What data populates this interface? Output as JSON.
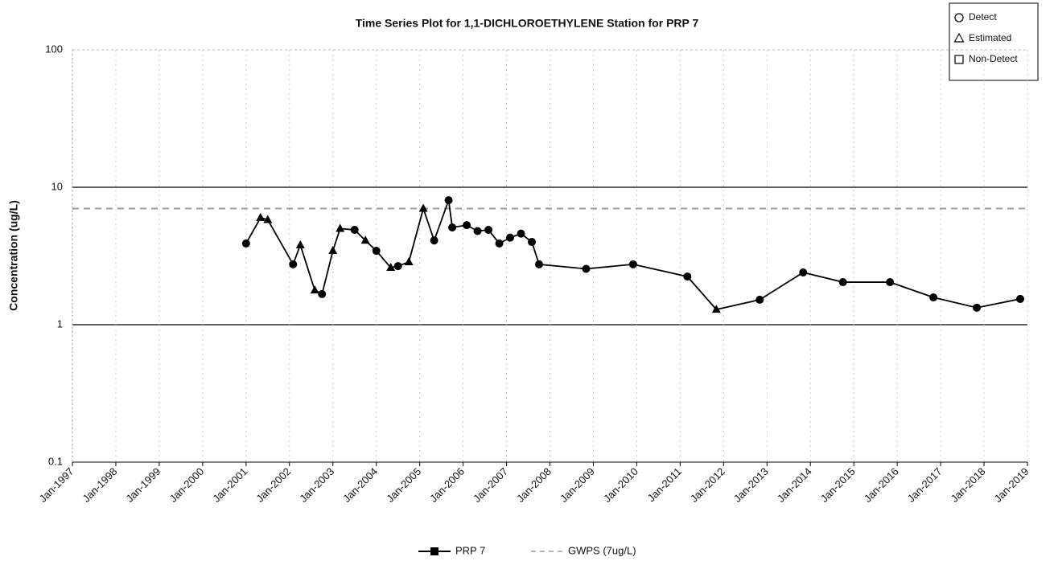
{
  "chart_data": {
    "type": "line",
    "title": "Time Series Plot for 1,1-DICHLOROETHYLENE Station for PRP 7",
    "y_label": "Concentration (ug/L)",
    "log_y": true,
    "grid": true,
    "ylim": [
      0.1,
      100
    ],
    "yticks": [
      0.1,
      1,
      10,
      100
    ],
    "xlim": [
      "1997-01",
      "2019-01"
    ],
    "xticks": [
      {
        "value": "1997-01",
        "label": "Jan-1997"
      },
      {
        "value": "1998-01",
        "label": "Jan-1998"
      },
      {
        "value": "1999-01",
        "label": "Jan-1999"
      },
      {
        "value": "2000-01",
        "label": "Jan-2000"
      },
      {
        "value": "2001-01",
        "label": "Jan-2001"
      },
      {
        "value": "2002-01",
        "label": "Jan-2002"
      },
      {
        "value": "2003-01",
        "label": "Jan-2003"
      },
      {
        "value": "2004-01",
        "label": "Jan-2004"
      },
      {
        "value": "2005-01",
        "label": "Jan-2005"
      },
      {
        "value": "2006-01",
        "label": "Jan-2006"
      },
      {
        "value": "2007-01",
        "label": "Jan-2007"
      },
      {
        "value": "2008-01",
        "label": "Jan-2008"
      },
      {
        "value": "2009-01",
        "label": "Jan-2009"
      },
      {
        "value": "2010-01",
        "label": "Jan-2010"
      },
      {
        "value": "2011-01",
        "label": "Jan-2011"
      },
      {
        "value": "2012-01",
        "label": "Jan-2012"
      },
      {
        "value": "2013-01",
        "label": "Jan-2013"
      },
      {
        "value": "2014-01",
        "label": "Jan-2014"
      },
      {
        "value": "2015-01",
        "label": "Jan-2015"
      },
      {
        "value": "2016-01",
        "label": "Jan-2016"
      },
      {
        "value": "2017-01",
        "label": "Jan-2017"
      },
      {
        "value": "2018-01",
        "label": "Jan-2018"
      },
      {
        "value": "2019-01",
        "label": "Jan-2019"
      }
    ],
    "series": [
      {
        "name": "PRP 7",
        "color": "#000000",
        "x": [
          "2001-01",
          "2001-05",
          "2001-07",
          "2002-02",
          "2002-04",
          "2002-08",
          "2002-10",
          "2003-01",
          "2003-03",
          "2003-07",
          "2003-10",
          "2004-01",
          "2004-05",
          "2004-07",
          "2004-10",
          "2005-02",
          "2005-05",
          "2005-09",
          "2005-10",
          "2006-02",
          "2006-05",
          "2006-08",
          "2006-11",
          "2007-02",
          "2007-05",
          "2007-08",
          "2007-10",
          "2008-11",
          "2009-12",
          "2011-03",
          "2011-11",
          "2012-11",
          "2013-11",
          "2014-10",
          "2015-11",
          "2016-11",
          "2017-11",
          "2018-11"
        ],
        "values": [
          3.9,
          6.0,
          5.8,
          2.75,
          3.8,
          1.78,
          1.67,
          3.45,
          5.0,
          4.9,
          4.1,
          3.45,
          2.6,
          2.67,
          2.86,
          7.0,
          4.1,
          8.05,
          5.1,
          5.3,
          4.8,
          4.9,
          3.9,
          4.3,
          4.6,
          4.0,
          2.75,
          2.55,
          2.75,
          2.24,
          1.29,
          1.52,
          2.4,
          2.04,
          2.04,
          1.58,
          1.33,
          1.54
        ],
        "markers": [
          "circle",
          "triangle",
          "triangle",
          "circle",
          "triangle",
          "triangle",
          "circle",
          "triangle",
          "triangle",
          "circle",
          "triangle",
          "circle",
          "triangle",
          "circle",
          "triangle",
          "triangle",
          "circle",
          "circle",
          "circle",
          "circle",
          "circle",
          "circle",
          "circle",
          "circle",
          "circle",
          "circle",
          "circle",
          "circle",
          "circle",
          "circle",
          "triangle",
          "circle",
          "circle",
          "circle",
          "circle",
          "circle",
          "circle",
          "circle"
        ]
      }
    ],
    "reference_lines": [
      {
        "name": "GWPS (7ug/L)",
        "value": 7,
        "color": "#9a9a9a",
        "dash": true
      }
    ],
    "marker_legend": [
      {
        "label": "Detect",
        "shape": "circle"
      },
      {
        "label": "Estimated",
        "shape": "triangle"
      },
      {
        "label": "Non-Detect",
        "shape": "square"
      }
    ]
  }
}
